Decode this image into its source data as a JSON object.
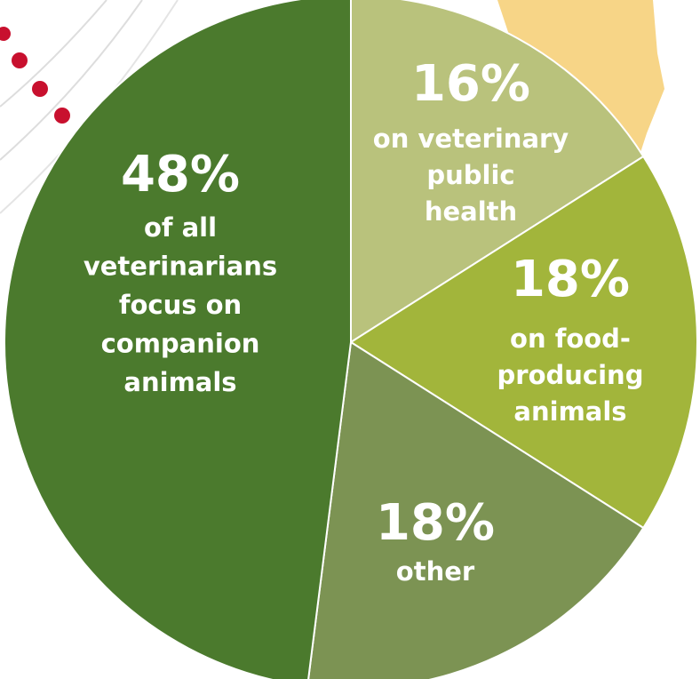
{
  "chart_data": {
    "type": "pie",
    "values": [
      16,
      18,
      18,
      48
    ],
    "value_labels": [
      "16%",
      "18%",
      "18%",
      "48%"
    ],
    "labels": [
      [
        "on veterinary",
        "public",
        "health"
      ],
      [
        "on food-",
        "producing",
        "animals"
      ],
      [
        "other"
      ],
      [
        "of all",
        "veterinarians",
        "focus on",
        "companion",
        "animals"
      ]
    ],
    "colors": [
      "#b9c27c",
      "#a2b53b",
      "#7c9353",
      "#4b7a2d"
    ],
    "start_angle": 0,
    "direction": "clockwise"
  }
}
